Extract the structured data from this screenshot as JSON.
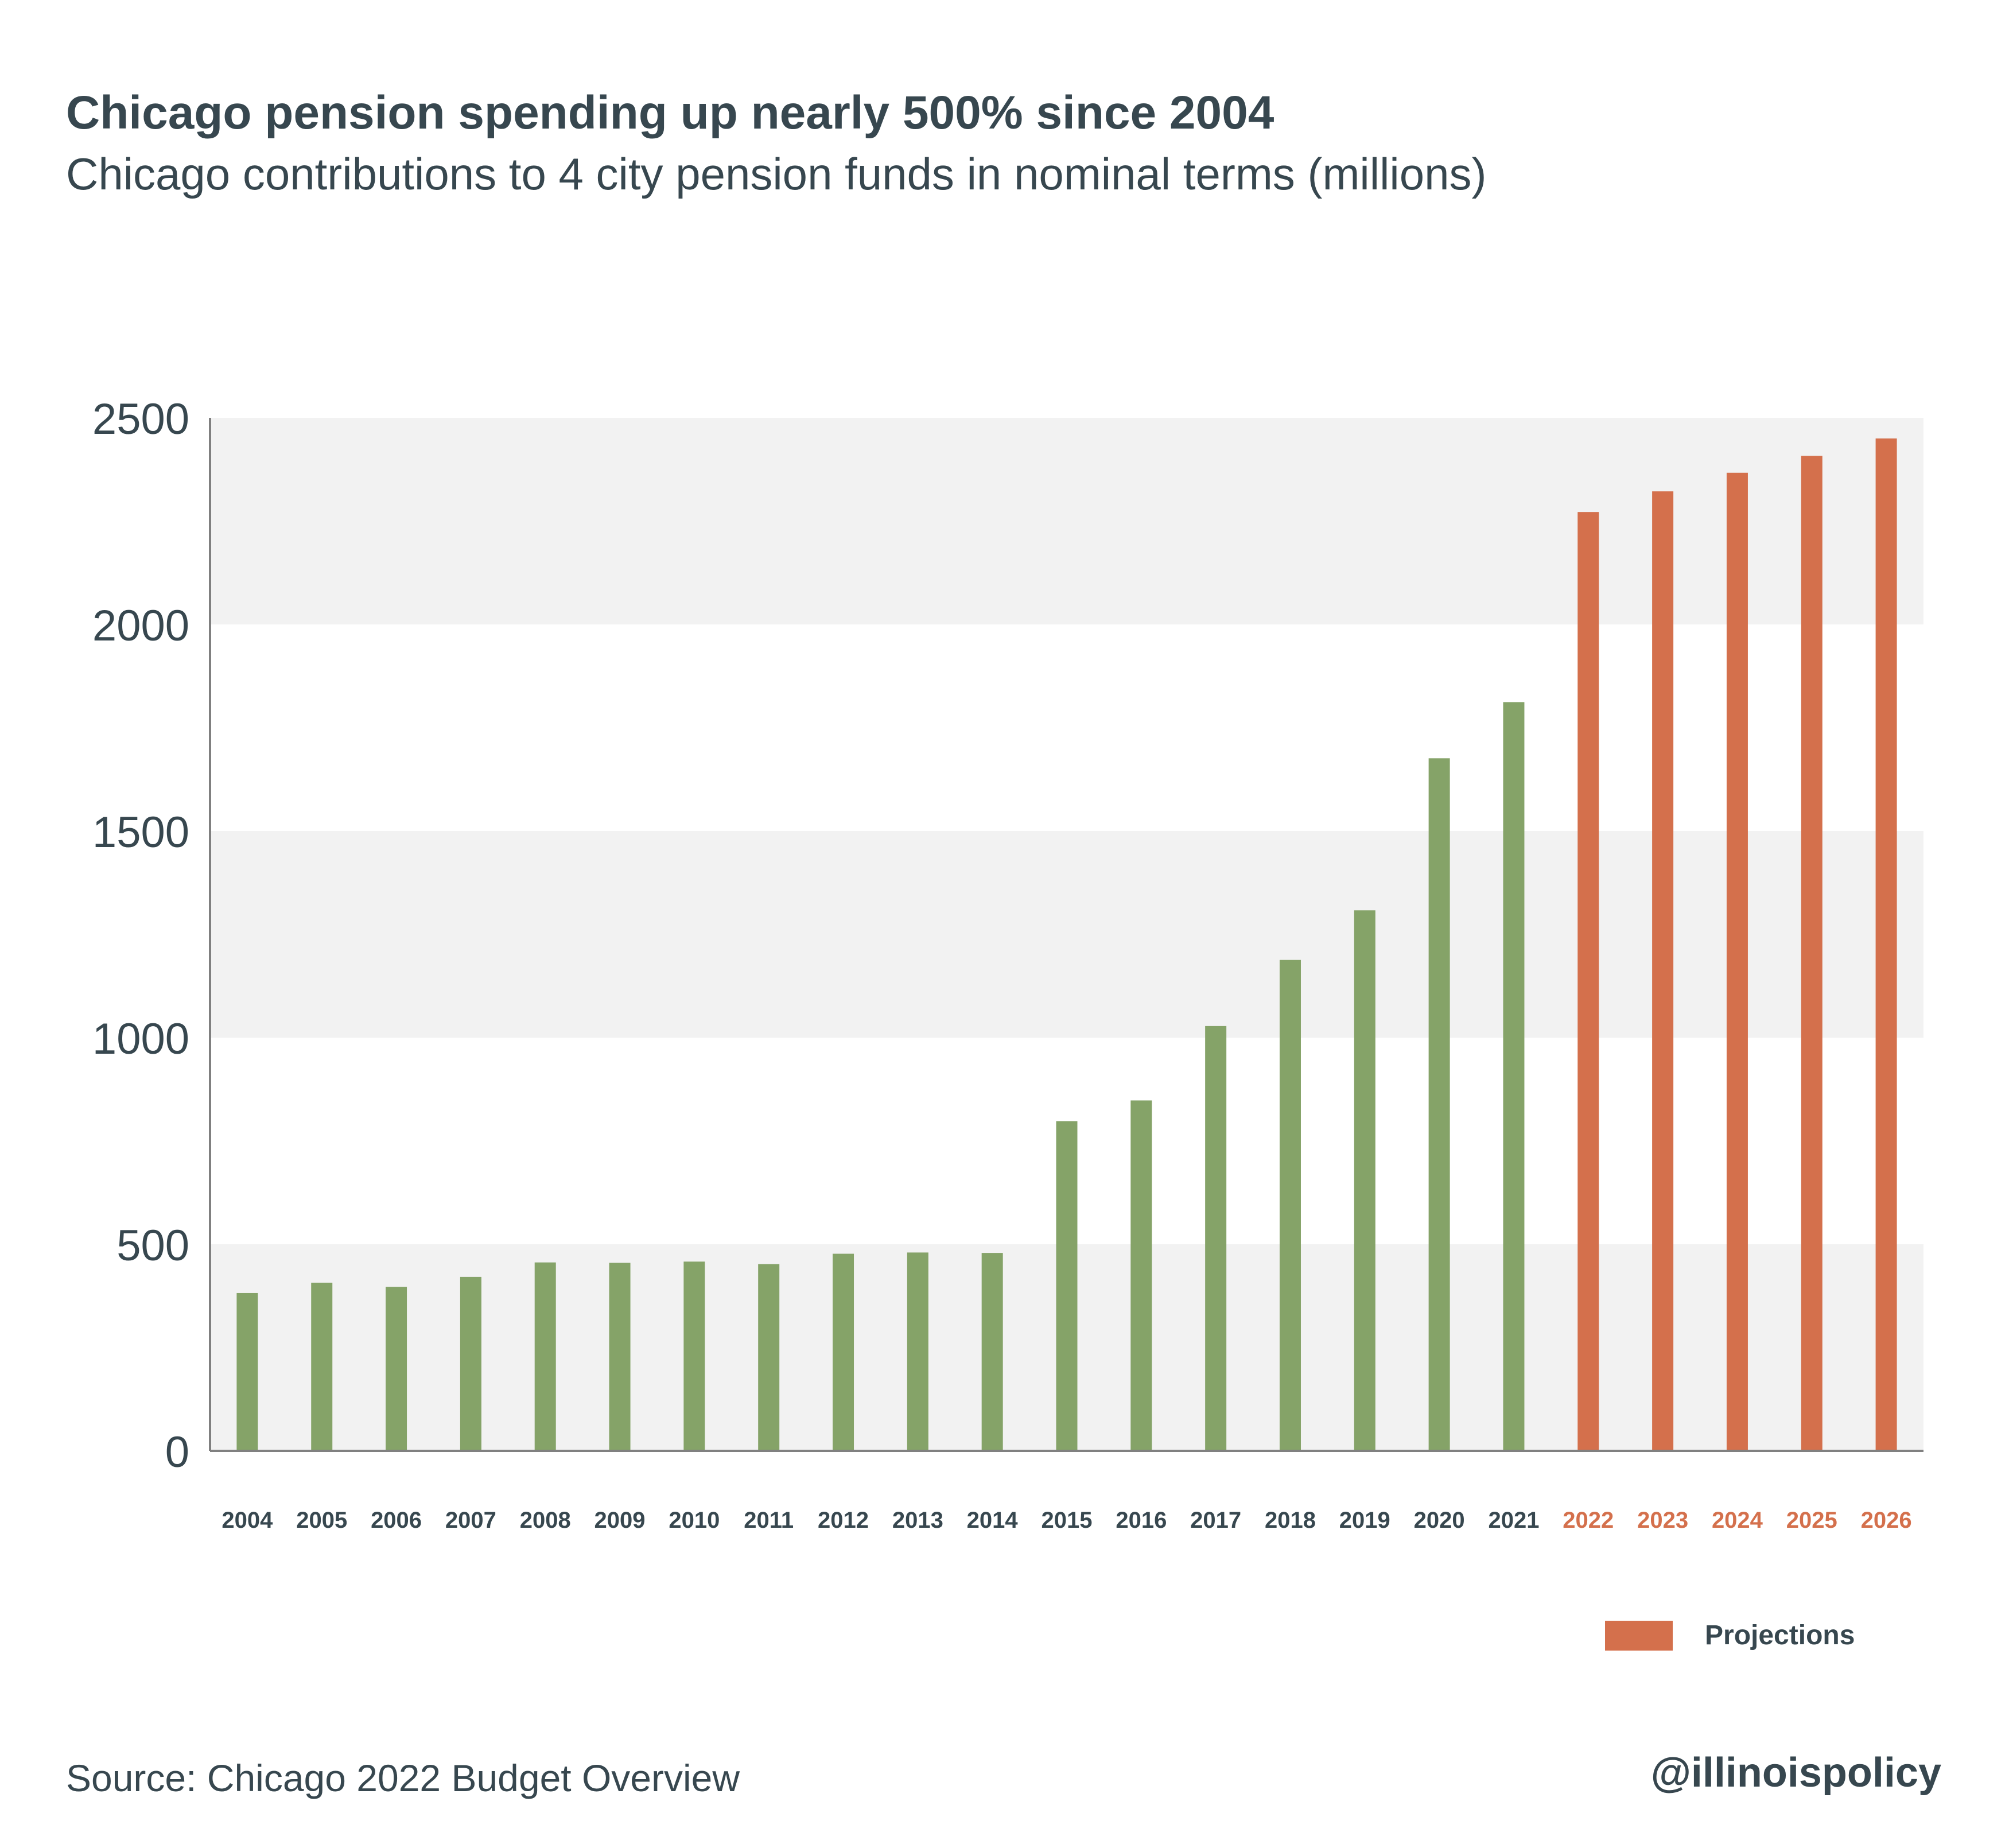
{
  "chart_data": {
    "type": "bar",
    "title": "Chicago pension spending up nearly 500% since 2004",
    "subtitle": "Chicago contributions to 4 city pension funds in nominal terms (millions)",
    "categories": [
      "2004",
      "2005",
      "2006",
      "2007",
      "2008",
      "2009",
      "2010",
      "2011",
      "2012",
      "2013",
      "2014",
      "2015",
      "2016",
      "2017",
      "2018",
      "2019",
      "2020",
      "2021",
      "2022",
      "2023",
      "2024",
      "2025",
      "2026"
    ],
    "values": [
      382,
      407,
      397,
      421,
      456,
      455,
      458,
      452,
      477,
      480,
      479,
      798,
      848,
      1028,
      1188,
      1308,
      1676,
      1812,
      2272,
      2322,
      2367,
      2408,
      2450
    ],
    "projection_start_index": 18,
    "ylim": [
      0,
      2500
    ],
    "yticks": [
      0,
      500,
      1000,
      1500,
      2000,
      2500
    ],
    "grid": "alternating horizontal bands",
    "legend": {
      "placement": "bottom-right",
      "entries": [
        {
          "label": "Projections",
          "color": "#d4704c"
        }
      ]
    },
    "colors": {
      "actual": "#85a368",
      "projection": "#d4704c",
      "band": "#f2f2f2",
      "axis": "#808080",
      "text": "#37474f"
    }
  },
  "footer": {
    "source": "Source:  Chicago 2022 Budget Overview",
    "handle": "@illinoispolicy"
  }
}
